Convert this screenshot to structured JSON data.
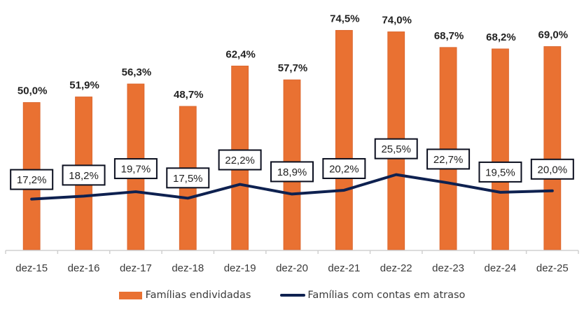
{
  "chart_data": {
    "type": "bar",
    "title": "",
    "xlabel": "",
    "ylabel": "",
    "ylim": [
      0,
      85
    ],
    "grid": false,
    "legend_position": "bottom",
    "categories": [
      "dez-15",
      "dez-16",
      "dez-17",
      "dez-18",
      "dez-19",
      "dez-20",
      "dez-21",
      "dez-22",
      "dez-23",
      "dez-24",
      "dez-25"
    ],
    "series": [
      {
        "name": "Famílias endividadas",
        "type": "bar",
        "color": "#E97132",
        "values": [
          50.0,
          51.9,
          56.3,
          48.7,
          62.4,
          57.7,
          74.5,
          74.0,
          68.7,
          68.2,
          69.0
        ],
        "labels": [
          "50,0%",
          "51,9%",
          "56,3%",
          "48,7%",
          "62,4%",
          "57,7%",
          "74,5%",
          "74,0%",
          "68,7%",
          "68,2%",
          "69,0%"
        ]
      },
      {
        "name": "Famílias com contas em atraso",
        "type": "line",
        "color": "#0E2150",
        "values": [
          17.2,
          18.2,
          19.7,
          17.5,
          22.2,
          18.9,
          20.2,
          25.5,
          22.7,
          19.5,
          20.0
        ],
        "labels": [
          "17,2%",
          "18,2%",
          "19,7%",
          "17,5%",
          "22,2%",
          "18,9%",
          "20,2%",
          "25,5%",
          "22,7%",
          "19,5%",
          "20,0%"
        ]
      }
    ]
  }
}
